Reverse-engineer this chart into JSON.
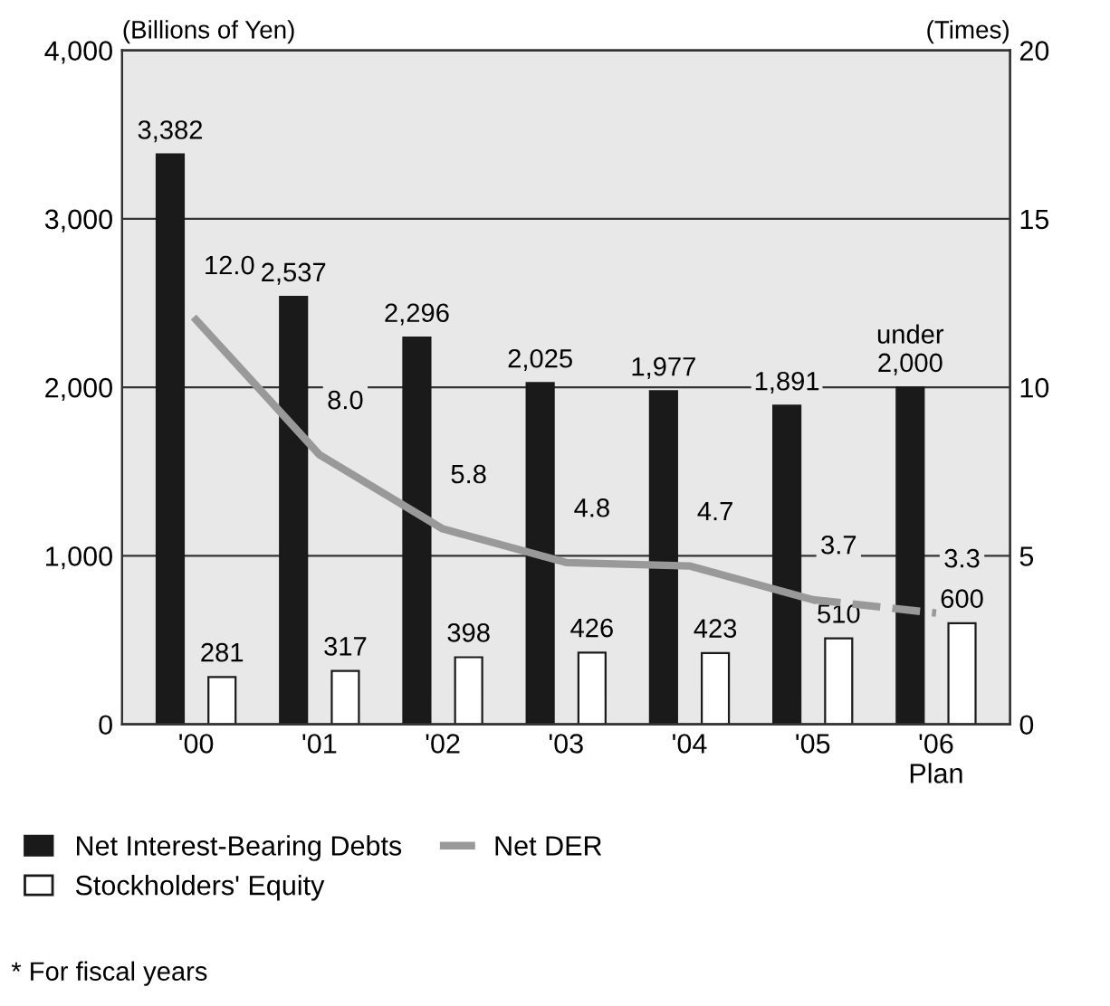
{
  "chart_data": {
    "type": "bar",
    "categories": [
      "'00",
      "'01",
      "'02",
      "'03",
      "'04",
      "'05",
      "'06\nPlan"
    ],
    "ylabel": "(Billions of Yen)",
    "y2label": "(Times)",
    "ylim": [
      0,
      4000
    ],
    "yticks": [
      {
        "value": 0,
        "label": "0"
      },
      {
        "value": 1000,
        "label": "1,000"
      },
      {
        "value": 2000,
        "label": "2,000"
      },
      {
        "value": 3000,
        "label": "3,000"
      },
      {
        "value": 4000,
        "label": "4,000"
      }
    ],
    "y2lim": [
      0,
      20
    ],
    "y2ticks": [
      0,
      5,
      10,
      15,
      20
    ],
    "grid": "y",
    "legend": "bottom",
    "series": [
      {
        "name": "Net Interest-Bearing Debts",
        "color": "#1a1a1a",
        "values": [
          3382,
          2537,
          2296,
          2025,
          1977,
          1891,
          2000
        ],
        "value_labels": [
          "3,382",
          "2,537",
          "2,296",
          "2,025",
          "1,977",
          "1,891",
          "under\n2,000"
        ]
      },
      {
        "name": "Stockholders' Equity",
        "color": "#ffffff",
        "values": [
          281,
          317,
          398,
          426,
          423,
          510,
          600
        ],
        "value_labels": [
          "281",
          "317",
          "398",
          "426",
          "423",
          "510",
          "600"
        ]
      },
      {
        "name": "Net DER",
        "type": "line",
        "axis": "y2",
        "color": "#999999",
        "line_style": "solid",
        "values": [
          12.0,
          8.0,
          5.8,
          4.8,
          4.7,
          3.7,
          null
        ],
        "value_labels": [
          "12.0",
          "8.0",
          "5.8",
          "4.8",
          "4.7",
          "3.7",
          null
        ]
      },
      {
        "type": "line",
        "axis": "y2",
        "color": "#999999",
        "line_style": "dashed",
        "values": [
          null,
          null,
          null,
          null,
          null,
          3.7,
          3.3
        ],
        "value_labels": [
          null,
          null,
          null,
          null,
          null,
          null,
          "3.3"
        ]
      }
    ],
    "annotations": [
      "* For fiscal years"
    ]
  }
}
